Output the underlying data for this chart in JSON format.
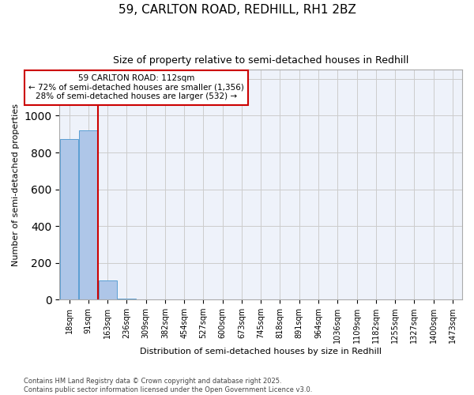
{
  "title1": "59, CARLTON ROAD, REDHILL, RH1 2BZ",
  "title2": "Size of property relative to semi-detached houses in Redhill",
  "xlabel": "Distribution of semi-detached houses by size in Redhill",
  "ylabel": "Number of semi-detached properties",
  "bin_labels": [
    "18sqm",
    "91sqm",
    "163sqm",
    "236sqm",
    "309sqm",
    "382sqm",
    "454sqm",
    "527sqm",
    "600sqm",
    "673sqm",
    "745sqm",
    "818sqm",
    "891sqm",
    "964sqm",
    "1036sqm",
    "1109sqm",
    "1182sqm",
    "1255sqm",
    "1327sqm",
    "1400sqm",
    "1473sqm"
  ],
  "bin_values": [
    875,
    920,
    105,
    4,
    0,
    0,
    0,
    0,
    0,
    0,
    0,
    0,
    0,
    0,
    0,
    0,
    0,
    0,
    0,
    0,
    0
  ],
  "bar_color": "#aec6e8",
  "bar_edge_color": "#5a9fd4",
  "property_bin_index": 1,
  "annotation_title": "59 CARLTON ROAD: 112sqm",
  "annotation_line1": "← 72% of semi-detached houses are smaller (1,356)",
  "annotation_line2": "28% of semi-detached houses are larger (532) →",
  "annotation_box_color": "#ffffff",
  "annotation_box_edge": "#cc0000",
  "vline_color": "#cc0000",
  "ylim": [
    0,
    1250
  ],
  "footer1": "Contains HM Land Registry data © Crown copyright and database right 2025.",
  "footer2": "Contains public sector information licensed under the Open Government Licence v3.0."
}
